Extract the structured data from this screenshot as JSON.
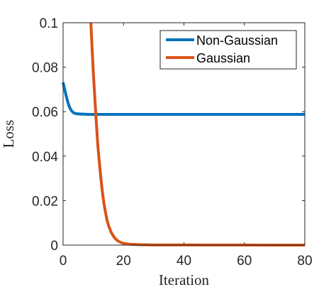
{
  "chart_data": {
    "type": "line",
    "title": "",
    "xlabel": "Iteration",
    "ylabel": "Loss",
    "xlim": [
      0,
      80
    ],
    "ylim": [
      0,
      0.1
    ],
    "xticks": [
      0,
      20,
      40,
      60,
      80
    ],
    "yticks": [
      0,
      0.02,
      0.04,
      0.06,
      0.08,
      0.1
    ],
    "xtick_labels": [
      "0",
      "20",
      "40",
      "60",
      "80"
    ],
    "ytick_labels": [
      "0",
      "0.02",
      "0.04",
      "0.06",
      "0.08",
      "0.1"
    ],
    "grid": false,
    "legend_position": "top-right",
    "series": [
      {
        "name": "Non-Gaussian",
        "color": "#0072BD",
        "x": [
          0,
          0.5,
          1,
          1.5,
          2,
          2.5,
          3,
          3.5,
          4,
          5,
          6,
          7,
          8,
          10,
          15,
          20,
          30,
          40,
          50,
          60,
          70,
          80
        ],
        "y": [
          0.0732,
          0.0702,
          0.0672,
          0.0646,
          0.0625,
          0.061,
          0.0601,
          0.0595,
          0.0592,
          0.059,
          0.0589,
          0.0589,
          0.0588,
          0.0588,
          0.0588,
          0.0588,
          0.0588,
          0.0588,
          0.0588,
          0.0588,
          0.0588,
          0.0588
        ]
      },
      {
        "name": "Gaussian",
        "color": "#D95319",
        "x": [
          9.2,
          9.5,
          10,
          10.5,
          11,
          11.5,
          12,
          12.5,
          13,
          13.5,
          14,
          14.5,
          15,
          16,
          17,
          18,
          19,
          20,
          22,
          25,
          30,
          40,
          50,
          60,
          70,
          80
        ],
        "y": [
          0.1,
          0.091,
          0.078,
          0.066,
          0.055,
          0.045,
          0.037,
          0.03,
          0.024,
          0.019,
          0.015,
          0.0115,
          0.009,
          0.0055,
          0.0033,
          0.002,
          0.0012,
          0.0008,
          0.0004,
          0.0002,
          0.0001,
          5e-05,
          3e-05,
          2e-05,
          1e-05,
          1e-05
        ]
      }
    ]
  }
}
